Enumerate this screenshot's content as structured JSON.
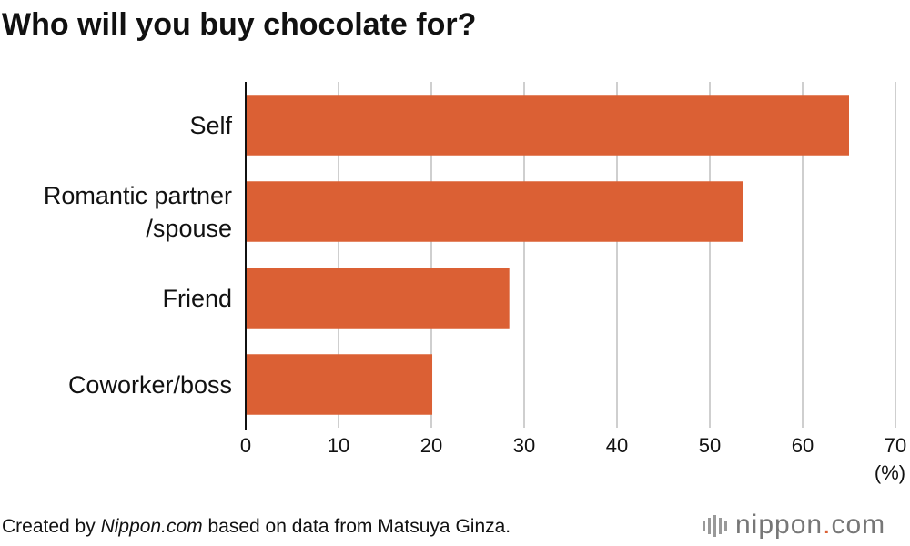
{
  "chart_data": {
    "type": "bar",
    "orientation": "horizontal",
    "title": "Who will you buy chocolate for?",
    "categories": [
      "Self",
      "Romantic partner\n/spouse",
      "Friend",
      "Coworker/boss"
    ],
    "values": [
      65,
      53.6,
      28.4,
      20.1
    ],
    "color": "#db6034",
    "xlim": [
      0,
      70
    ],
    "xticks": [
      0,
      10,
      20,
      30,
      40,
      50,
      60,
      70
    ],
    "x_unit": "(%)",
    "grid": true,
    "source": {
      "before": "Created by ",
      "emphasis": "Nippon.com",
      "after": " based on data from Matsuya Ginza."
    },
    "logo": {
      "name": "nippon",
      "dot": ".",
      "suffix": "com"
    }
  }
}
